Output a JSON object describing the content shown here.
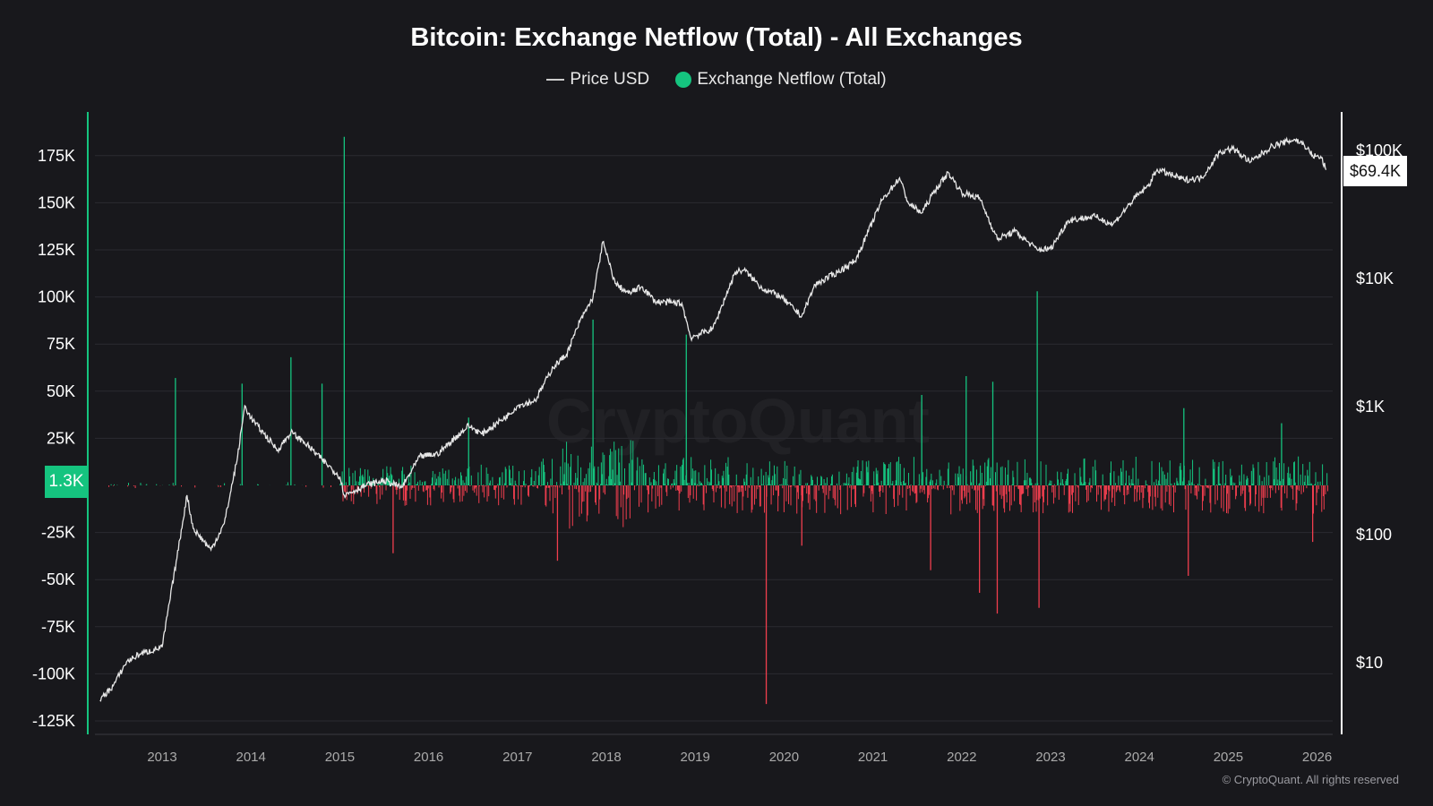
{
  "chart_data": {
    "type": "bar+line",
    "title": "Bitcoin: Exchange Netflow (Total) - All Exchanges",
    "legend": [
      "Price USD",
      "Exchange Netflow (Total)"
    ],
    "legend_placement": "top-center",
    "colors": {
      "price": "#e6e6e6",
      "inflow": "#15c47f",
      "outflow": "#f03e4e",
      "axis_left": "#15c47f",
      "background": "#18181c"
    },
    "x_ticks": [
      "2013",
      "2014",
      "2015",
      "2016",
      "2017",
      "2018",
      "2019",
      "2020",
      "2021",
      "2022",
      "2023",
      "2024",
      "2025",
      "2026"
    ],
    "xlim": [
      2012.3,
      2026.15
    ],
    "left_axis": {
      "ticks": [
        175000,
        150000,
        125000,
        100000,
        75000,
        50000,
        25000,
        -25000,
        -50000,
        -75000,
        -100000,
        -125000
      ],
      "tick_labels": [
        "175K",
        "150K",
        "125K",
        "100K",
        "75K",
        "50K",
        "25K",
        "-25K",
        "-50K",
        "-75K",
        "-100K",
        "-125K"
      ],
      "ylim": [
        -133000,
        195000
      ],
      "current_value_label": "1.3K"
    },
    "right_axis": {
      "scale": "log",
      "tick_labels": [
        "$100K",
        "$10K",
        "$1K",
        "$100",
        "$10"
      ],
      "ticks": [
        100000,
        10000,
        1000,
        100,
        10
      ],
      "ylim": [
        3,
        300000
      ],
      "current_value_label": "$69.4K"
    },
    "grid": true,
    "price_series": {
      "name": "Price USD",
      "points": [
        [
          2012.3,
          5
        ],
        [
          2012.45,
          6.5
        ],
        [
          2012.6,
          10
        ],
        [
          2012.75,
          11.5
        ],
        [
          2013.0,
          13
        ],
        [
          2013.2,
          90
        ],
        [
          2013.28,
          200
        ],
        [
          2013.35,
          110
        ],
        [
          2013.55,
          75
        ],
        [
          2013.7,
          120
        ],
        [
          2013.85,
          400
        ],
        [
          2013.93,
          1000
        ],
        [
          2014.0,
          800
        ],
        [
          2014.15,
          600
        ],
        [
          2014.3,
          450
        ],
        [
          2014.45,
          620
        ],
        [
          2014.6,
          520
        ],
        [
          2014.8,
          380
        ],
        [
          2015.0,
          280
        ],
        [
          2015.05,
          200
        ],
        [
          2015.3,
          240
        ],
        [
          2015.5,
          260
        ],
        [
          2015.7,
          230
        ],
        [
          2015.9,
          400
        ],
        [
          2016.1,
          420
        ],
        [
          2016.45,
          700
        ],
        [
          2016.6,
          600
        ],
        [
          2016.9,
          850
        ],
        [
          2017.0,
          1000
        ],
        [
          2017.2,
          1100
        ],
        [
          2017.4,
          2000
        ],
        [
          2017.55,
          2500
        ],
        [
          2017.7,
          4500
        ],
        [
          2017.85,
          7000
        ],
        [
          2017.96,
          19000
        ],
        [
          2018.1,
          9000
        ],
        [
          2018.25,
          7500
        ],
        [
          2018.4,
          8500
        ],
        [
          2018.55,
          6500
        ],
        [
          2018.85,
          6300
        ],
        [
          2018.95,
          3400
        ],
        [
          2019.2,
          4000
        ],
        [
          2019.45,
          11000
        ],
        [
          2019.55,
          11500
        ],
        [
          2019.75,
          8300
        ],
        [
          2019.95,
          7200
        ],
        [
          2020.2,
          5000
        ],
        [
          2020.35,
          8800
        ],
        [
          2020.6,
          11000
        ],
        [
          2020.8,
          13500
        ],
        [
          2020.95,
          23000
        ],
        [
          2021.1,
          40000
        ],
        [
          2021.3,
          60000
        ],
        [
          2021.4,
          38000
        ],
        [
          2021.55,
          32000
        ],
        [
          2021.7,
          48000
        ],
        [
          2021.85,
          66000
        ],
        [
          2022.0,
          46000
        ],
        [
          2022.2,
          42000
        ],
        [
          2022.4,
          20000
        ],
        [
          2022.6,
          23000
        ],
        [
          2022.85,
          16500
        ],
        [
          2023.0,
          16800
        ],
        [
          2023.2,
          28000
        ],
        [
          2023.5,
          30000
        ],
        [
          2023.7,
          26000
        ],
        [
          2023.95,
          42000
        ],
        [
          2024.1,
          52000
        ],
        [
          2024.2,
          70000
        ],
        [
          2024.5,
          58000
        ],
        [
          2024.7,
          60000
        ],
        [
          2024.9,
          95000
        ],
        [
          2025.05,
          102000
        ],
        [
          2025.25,
          80000
        ],
        [
          2025.5,
          107000
        ],
        [
          2025.75,
          120000
        ],
        [
          2025.85,
          110000
        ],
        [
          2025.95,
          90000
        ],
        [
          2026.05,
          86000
        ],
        [
          2026.1,
          69400
        ]
      ]
    },
    "netflow_notable": [
      [
        2013.15,
        57000
      ],
      [
        2013.9,
        54000
      ],
      [
        2014.45,
        68000
      ],
      [
        2014.8,
        54000
      ],
      [
        2015.05,
        185000
      ],
      [
        2015.6,
        -36000
      ],
      [
        2016.45,
        36000
      ],
      [
        2017.45,
        -40000
      ],
      [
        2017.85,
        88000
      ],
      [
        2018.9,
        80000
      ],
      [
        2019.8,
        -116000
      ],
      [
        2020.2,
        -32000
      ],
      [
        2021.55,
        48000
      ],
      [
        2021.65,
        -45000
      ],
      [
        2022.05,
        58000
      ],
      [
        2022.2,
        -57000
      ],
      [
        2022.35,
        55000
      ],
      [
        2022.4,
        -68000
      ],
      [
        2022.85,
        103000
      ],
      [
        2022.87,
        -65000
      ],
      [
        2024.5,
        41000
      ],
      [
        2024.55,
        -48000
      ],
      [
        2025.6,
        33000
      ],
      [
        2025.95,
        -30000
      ]
    ]
  },
  "watermark": "CryptoQuant",
  "copyright": "© CryptoQuant. All rights reserved"
}
